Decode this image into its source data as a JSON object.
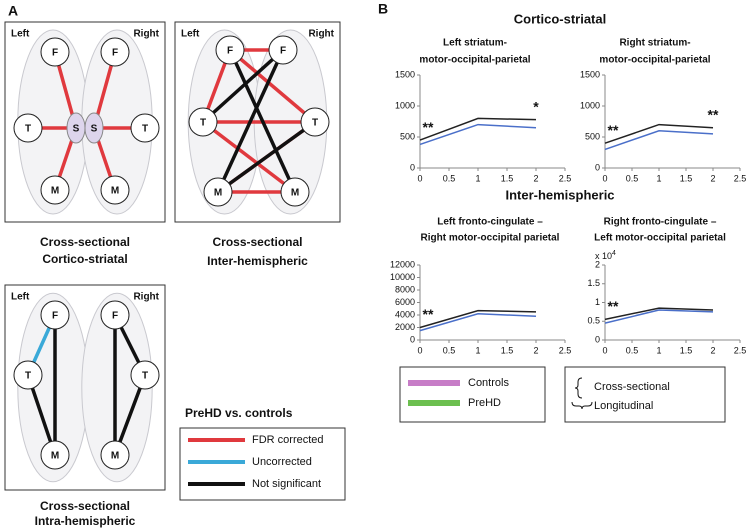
{
  "panel_a": {
    "label": "A",
    "diagrams": [
      {
        "left": "Left",
        "right": "Right",
        "nodes": [
          "F",
          "F",
          "T",
          "S",
          "S",
          "T",
          "M",
          "M"
        ],
        "caption": [
          "Cross-sectional",
          "Cortico-striatal"
        ]
      },
      {
        "left": "Left",
        "right": "Right",
        "nodes": [
          "F",
          "F",
          "T",
          "T",
          "M",
          "M"
        ],
        "caption": [
          "Cross-sectional",
          "Inter-hemispheric"
        ]
      },
      {
        "left": "Left",
        "right": "Right",
        "nodes": [
          "F",
          "F",
          "T",
          "T",
          "M",
          "M"
        ],
        "caption": [
          "Cross-sectional",
          "Intra-hemispheric"
        ]
      }
    ],
    "legend": {
      "title": "PreHD vs. controls",
      "items": [
        {
          "label": "FDR corrected",
          "color": "#e0393e"
        },
        {
          "label": "Uncorrected",
          "color": "#3aa9d8"
        },
        {
          "label": "Not significant",
          "color": "#111111"
        }
      ]
    }
  },
  "panel_b": {
    "label": "B",
    "section_titles": [
      "Cortico-striatal",
      "Inter-hemispheric"
    ],
    "legend": {
      "series": [
        {
          "name": "Controls",
          "color": "#c77dc7"
        },
        {
          "name": "PreHD",
          "color": "#6cbf4f"
        }
      ],
      "effects": [
        "Cross-sectional",
        "Longitudinal"
      ]
    },
    "chart_data": [
      {
        "type": "line",
        "title": [
          "Left striatum-",
          "motor-occipital-parietal"
        ],
        "x": [
          0,
          1,
          2
        ],
        "series": [
          {
            "color": "#222222",
            "values": [
              450,
              800,
              780
            ]
          },
          {
            "color": "#4a6fc9",
            "values": [
              380,
              700,
              650
            ]
          }
        ],
        "annotations": [
          {
            "text": "**",
            "x": 0
          },
          {
            "text": "*",
            "x": 2
          }
        ],
        "xlim": [
          0,
          2.5
        ],
        "xticks": [
          0,
          0.5,
          1,
          1.5,
          2,
          2.5
        ],
        "ylim": [
          0,
          1500
        ],
        "yticks": [
          0,
          500,
          1000,
          1500
        ]
      },
      {
        "type": "line",
        "title": [
          "Right striatum-",
          "motor-occipital-parietal"
        ],
        "x": [
          0,
          1,
          2
        ],
        "series": [
          {
            "color": "#222222",
            "values": [
              400,
              700,
              650
            ]
          },
          {
            "color": "#4a6fc9",
            "values": [
              300,
              600,
              550
            ]
          }
        ],
        "annotations": [
          {
            "text": "**",
            "x": 0
          },
          {
            "text": "**",
            "x": 2
          }
        ],
        "xlim": [
          0,
          2.5
        ],
        "xticks": [
          0,
          0.5,
          1,
          1.5,
          2,
          2.5
        ],
        "ylim": [
          0,
          1500
        ],
        "yticks": [
          0,
          500,
          1000,
          1500
        ]
      },
      {
        "type": "line",
        "title": [
          "Left fronto-cingulate –",
          "Right motor-occipital parietal"
        ],
        "x": [
          0,
          1,
          2
        ],
        "series": [
          {
            "color": "#222222",
            "values": [
              2000,
              4700,
              4500
            ]
          },
          {
            "color": "#4a6fc9",
            "values": [
              1500,
              4200,
              3800
            ]
          }
        ],
        "annotations": [
          {
            "text": "**",
            "x": 0
          }
        ],
        "xlim": [
          0,
          2.5
        ],
        "xticks": [
          0,
          0.5,
          1,
          1.5,
          2,
          2.5
        ],
        "ylim": [
          0,
          12000
        ],
        "yticks": [
          0,
          2000,
          4000,
          6000,
          8000,
          10000,
          12000
        ]
      },
      {
        "type": "line",
        "title": [
          "Right fronto-cingulate –",
          "Left motor-occipital parietal"
        ],
        "x": [
          0,
          1,
          2
        ],
        "y_scale": [
          "x 10",
          "4"
        ],
        "series": [
          {
            "color": "#222222",
            "values": [
              0.55,
              0.85,
              0.8
            ]
          },
          {
            "color": "#4a6fc9",
            "values": [
              0.45,
              0.8,
              0.75
            ]
          }
        ],
        "annotations": [
          {
            "text": "**",
            "x": 0
          }
        ],
        "xlim": [
          0,
          2.5
        ],
        "xticks": [
          0,
          0.5,
          1,
          1.5,
          2,
          2.5
        ],
        "ylim": [
          0,
          2
        ],
        "yticks": [
          0,
          0.5,
          1,
          1.5,
          2
        ]
      }
    ]
  }
}
